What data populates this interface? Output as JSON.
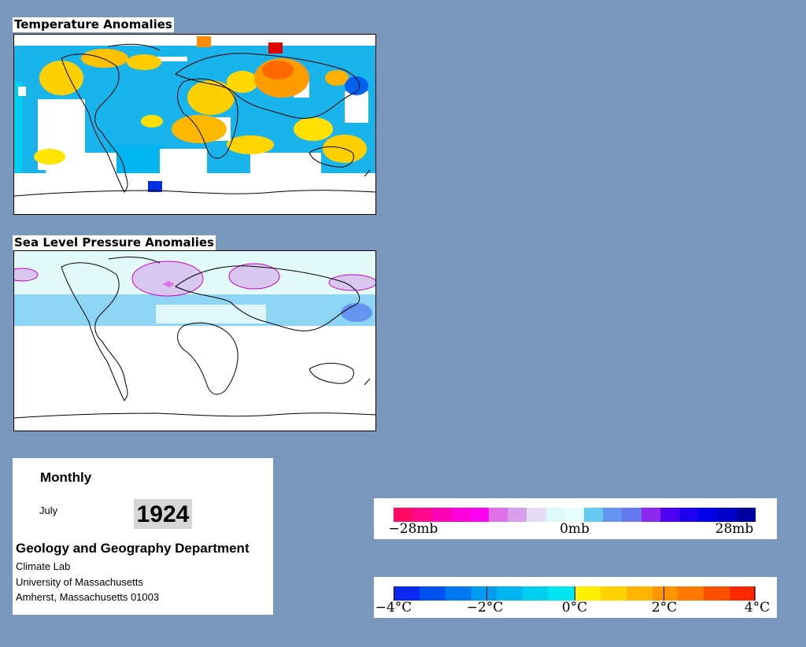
{
  "panels": {
    "temperature": {
      "title": "Temperature Anomalies"
    },
    "pressure": {
      "title": "Sea Level Pressure Anomalies"
    }
  },
  "info": {
    "period": "Monthly",
    "month": "July",
    "year": "1924",
    "department": "Geology and Geography Department",
    "lab": "Climate Lab",
    "university": "University of Massachusetts",
    "address": "Amherst, Massachusetts 01003"
  },
  "pressure_legend": {
    "labels": [
      "−28mb",
      "0mb",
      "28mb"
    ],
    "colors": [
      "#ff0a64",
      "#ff0a8c",
      "#ff00b4",
      "#ff00dc",
      "#ff00f0",
      "#e070e8",
      "#d8a0ec",
      "#e6dcf4",
      "#dcfafa",
      "#e6ffff",
      "#64c8f0",
      "#6496f0",
      "#6478f0",
      "#8c28f0",
      "#5000f0",
      "#1e00f0",
      "#0000e6",
      "#0000c8",
      "#0000a0"
    ]
  },
  "temperature_legend": {
    "labels": [
      "−4°C",
      "−2°C",
      "0°C",
      "2°C",
      "4°C"
    ],
    "colors": [
      "#0a28f0",
      "#0050f0",
      "#0078f0",
      "#009cf0",
      "#00b4f0",
      "#00d0f0",
      "#00e6f0",
      "#fff000",
      "#ffd200",
      "#ffb400",
      "#ff9600",
      "#ff7800",
      "#ff5000",
      "#ff2800"
    ]
  }
}
